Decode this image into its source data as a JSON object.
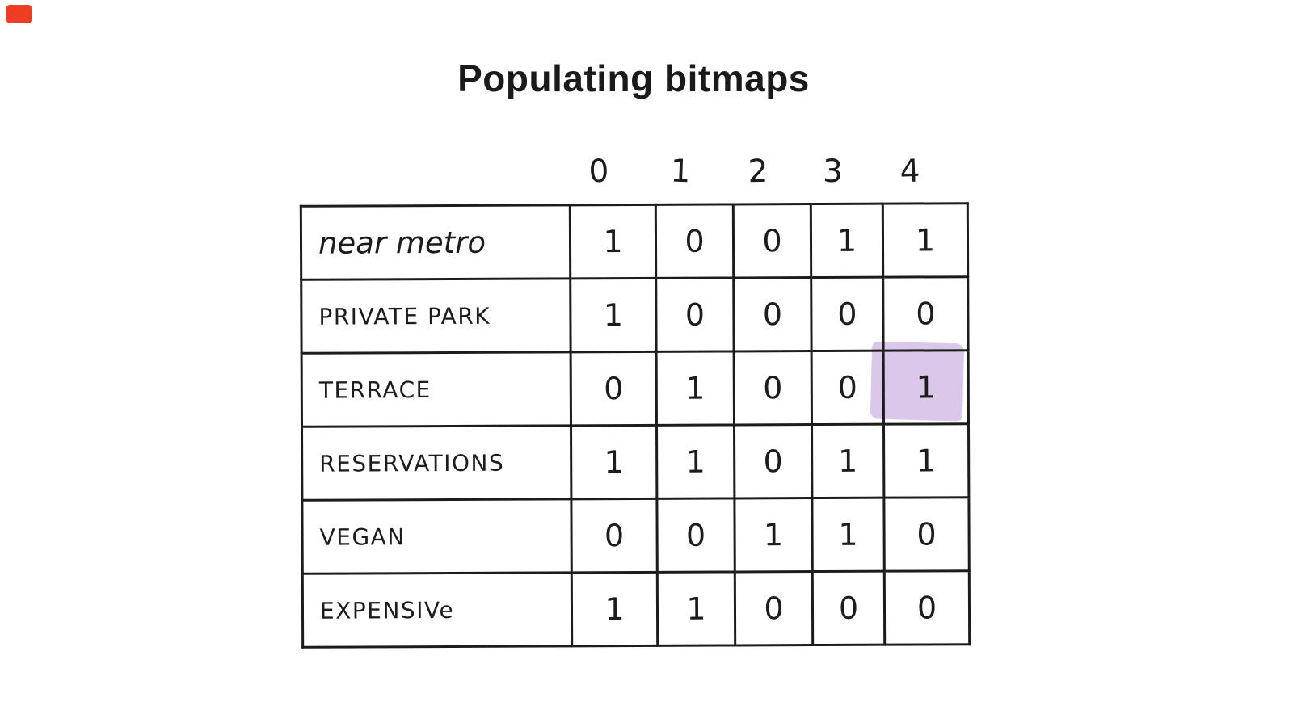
{
  "title": "Populating bitmaps",
  "colors": {
    "background": "#ffffff",
    "ink": "#1c1c1c",
    "highlight": "#dac7e9",
    "marker_red": "#ee3d25"
  },
  "bitmap_table": {
    "column_headers": [
      "0",
      "1",
      "2",
      "3",
      "4"
    ],
    "rows": [
      {
        "label": "near metro",
        "bits": [
          "1",
          "0",
          "0",
          "1",
          "1"
        ]
      },
      {
        "label": "PRIVATE PARK",
        "bits": [
          "1",
          "0",
          "0",
          "0",
          "0"
        ]
      },
      {
        "label": "TERRACE",
        "bits": [
          "0",
          "1",
          "0",
          "0",
          "1"
        ],
        "highlighted_bit_index": 4
      },
      {
        "label": "RESERVATIONS",
        "bits": [
          "1",
          "1",
          "0",
          "1",
          "1"
        ]
      },
      {
        "label": "VEGAN",
        "bits": [
          "0",
          "0",
          "1",
          "1",
          "0"
        ]
      },
      {
        "label": "EXPENSIVe",
        "bits": [
          "1",
          "1",
          "0",
          "0",
          "0"
        ]
      }
    ]
  }
}
